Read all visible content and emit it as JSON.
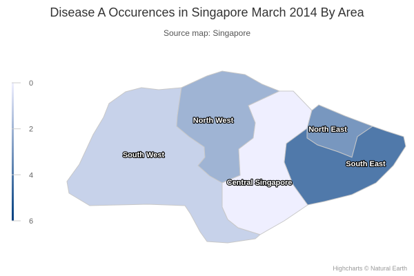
{
  "title": "Disease A Occurences in Singapore March 2014 By Area",
  "subtitle": "Source map: Singapore",
  "credits": "Highcharts © Natural Earth",
  "color_axis": {
    "min": 0,
    "max": 6,
    "ticks": [
      "0",
      "2",
      "4",
      "6"
    ],
    "min_color": "#EFEFFF",
    "max_color": "#003E7F"
  },
  "chart_data": {
    "type": "map",
    "title": "Disease A Occurences in Singapore March 2014 By Area",
    "subtitle": "Source map: Singapore",
    "regions": [
      {
        "name": "South West",
        "label": "South West",
        "value": 1
      },
      {
        "name": "North West",
        "label": "North West",
        "value": 2
      },
      {
        "name": "Central Singapore",
        "label": "Central Singapore",
        "value": 0
      },
      {
        "name": "North East",
        "label": "North East",
        "value": 3
      },
      {
        "name": "South East",
        "label": "South East",
        "value": 4
      }
    ]
  }
}
